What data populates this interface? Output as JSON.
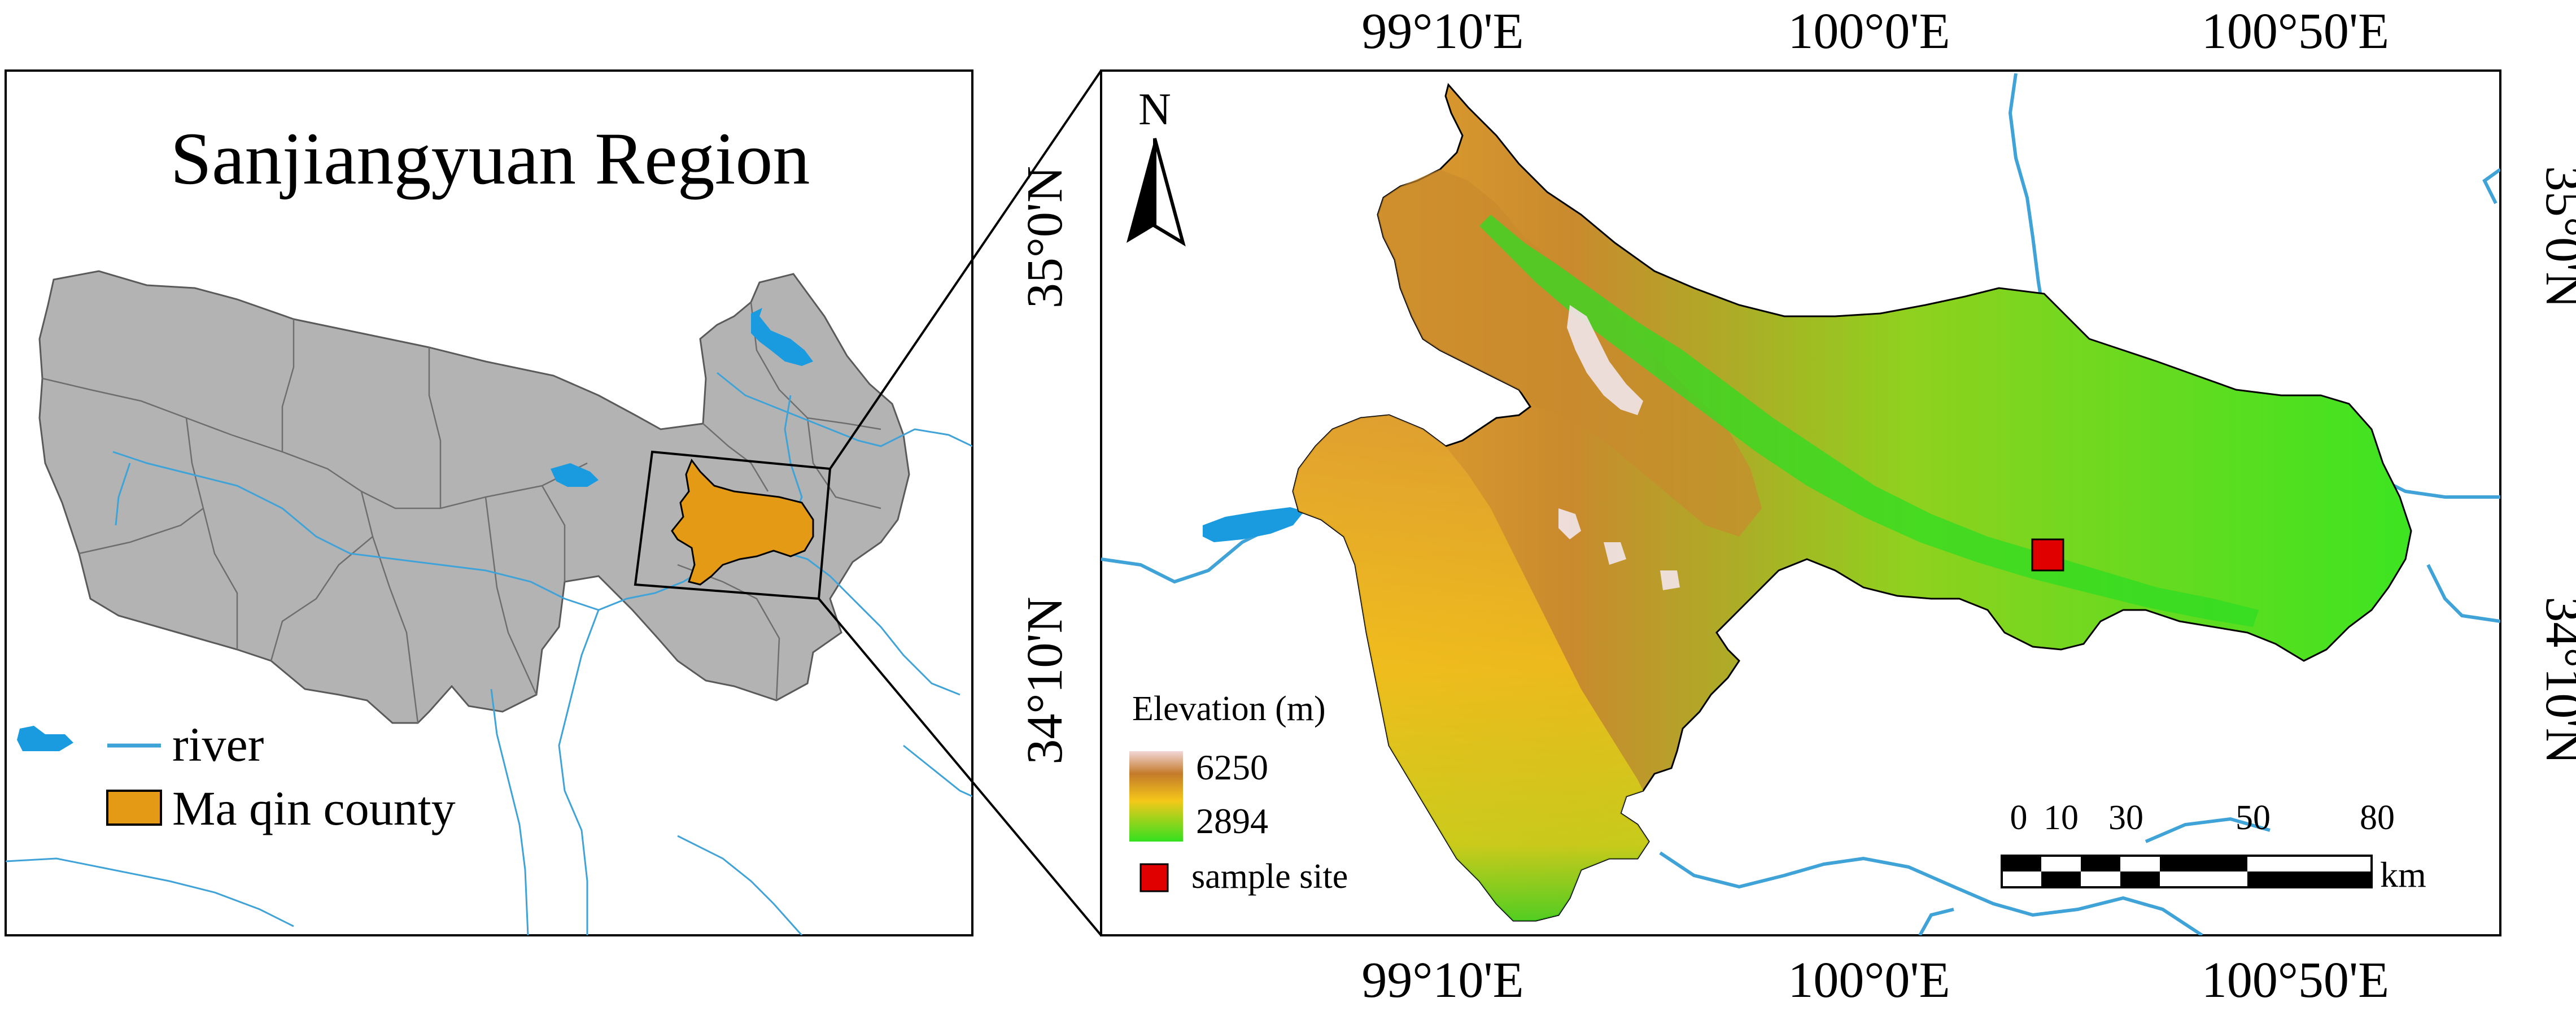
{
  "left_panel": {
    "title": "Sanjiangyuan Region",
    "legend": [
      {
        "label": "river",
        "symbol": "line",
        "color": "#3fa3d8"
      },
      {
        "label": "Ma qin county",
        "symbol": "fill",
        "color": "#e49a14"
      }
    ]
  },
  "right_panel": {
    "north_arrow": "N",
    "top_axis_labels": [
      "99°10'E",
      "100°0'E",
      "100°50'E"
    ],
    "bottom_axis_labels": [
      "99°10'E",
      "100°0'E",
      "100°50'E"
    ],
    "left_axis_labels": [
      "35°0'N",
      "34°10'N"
    ],
    "right_axis_labels": [
      "35°0'N",
      "34°10'N"
    ],
    "legend": {
      "title": "Elevation (m)",
      "max_label": "6250",
      "min_label": "2894",
      "sample_site_label": "sample site",
      "sample_site_color": "#e00000"
    },
    "scale_bar": {
      "ticks": [
        "0",
        "10",
        "30",
        "50",
        "80"
      ],
      "unit": "km"
    }
  },
  "colors": {
    "region_fill": "#b3b3b3",
    "river": "#3fa3d8",
    "lake": "#1a9be0",
    "county_fill": "#e49a14",
    "elev_high": "#f0d2d2",
    "elev_mid_high": "#c98a2e",
    "elev_mid": "#f2c419",
    "elev_low": "#36e21e"
  }
}
